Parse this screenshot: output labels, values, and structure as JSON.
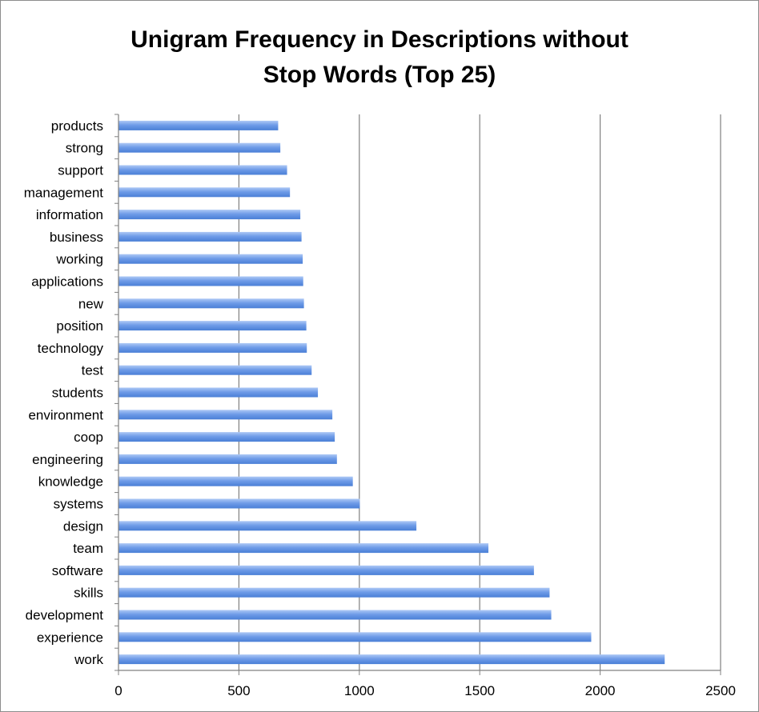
{
  "chart_data": {
    "type": "bar",
    "orientation": "horizontal",
    "title_line1": "Unigram Frequency in Descriptions without",
    "title_line2": "Stop Words (Top 25)",
    "xlabel": "",
    "ylabel": "",
    "xlim": [
      0,
      2500
    ],
    "xticks": [
      0,
      500,
      1000,
      1500,
      2000,
      2500
    ],
    "grid": "vertical",
    "legend": "none",
    "bar_color": "#5b8de0",
    "categories": [
      "products",
      "strong",
      "support",
      "management",
      "information",
      "business",
      "working",
      "applications",
      "new",
      "position",
      "technology",
      "test",
      "students",
      "environment",
      "coop",
      "engineering",
      "knowledge",
      "systems",
      "design",
      "team",
      "software",
      "skills",
      "development",
      "experience",
      "work"
    ],
    "values": [
      663,
      672,
      700,
      712,
      755,
      760,
      765,
      767,
      770,
      780,
      782,
      802,
      828,
      888,
      898,
      907,
      973,
      1002,
      1237,
      1536,
      1725,
      1790,
      1797,
      1963,
      2268
    ]
  }
}
